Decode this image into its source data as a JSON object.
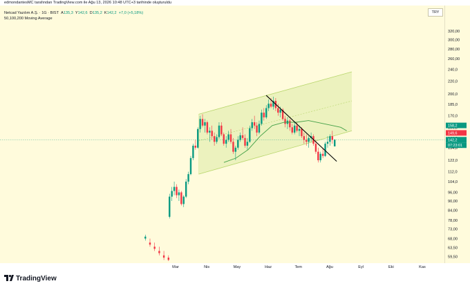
{
  "header": {
    "attribution": "edmondantesMC tarafından TradingView.com ile Ağu 13, 2026 10:48 UTC+3 tarihinde oluşturuldu"
  },
  "symbol": {
    "name": "Netcad Yazılım A.Ş. · 1G · BIST",
    "open_key": "A",
    "open_val": "135,3",
    "high_key": "Y",
    "high_val": "142,6",
    "low_key": "D",
    "low_val": "135,2",
    "close_key": "K",
    "close_val": "142,2",
    "change": "+7,0 (+5,18%)"
  },
  "indicator": {
    "label": "50,100,200 Moving Average"
  },
  "currency": "TRY",
  "logo": {
    "text": "TradingView"
  },
  "colors": {
    "up": "#089981",
    "down": "#f23645",
    "channel_fill": "#e6efb4",
    "channel_line": "#b6d56a",
    "ma": "#43a047",
    "trendline": "#000000"
  },
  "chart_data": {
    "type": "candlestick",
    "log_scale": true,
    "grid": false,
    "ylim": [
      57.5,
      335
    ],
    "y_ticks": [
      "320,00",
      "300,00",
      "280,00",
      "260,00",
      "240,0",
      "220,0",
      "200,0",
      "185,0",
      "170,0",
      "156,0",
      "144,0",
      "134,0",
      "122,0",
      "112,0",
      "104,0",
      "96,00",
      "90,00",
      "84,00",
      "78,00",
      "73,00",
      "68,00",
      "63,50",
      "59,50"
    ],
    "y_tick_values": [
      320,
      300,
      280,
      260,
      240,
      220,
      200,
      185,
      170,
      156,
      144,
      134,
      122,
      112,
      104,
      96,
      90,
      84,
      78,
      73,
      68,
      63.5,
      59.5
    ],
    "x_ticks": [
      "Mar",
      "Nis",
      "May",
      "Haz",
      "Tem",
      "Ağu",
      "Eyl",
      "Eki",
      "Kas"
    ],
    "x_tick_days": [
      0,
      31,
      61,
      92,
      122,
      153,
      184,
      214,
      245
    ],
    "price_tags": [
      {
        "label": "158,2",
        "value": 158.2,
        "color": "#089981"
      },
      {
        "label": "149,6",
        "value": 149.6,
        "color": "#f23645"
      },
      {
        "label": "142,2",
        "value": 142.2,
        "color": "#089981"
      },
      {
        "label": "07:23:01",
        "value": 136.5,
        "color": "#089981"
      }
    ],
    "trendline": {
      "points": [
        [
          1,
          198
        ],
        [
          1,
          121
        ]
      ],
      "days": [
        90,
        160
      ]
    },
    "channel": {
      "start_day": 23,
      "end_day": 175,
      "upper": [
        172,
        236
      ],
      "lower": [
        110,
        152
      ],
      "mid": [
        141,
        190
      ]
    },
    "moving_average": {
      "days": [
        48,
        60,
        72,
        84,
        96,
        108,
        120,
        132,
        144,
        156,
        164,
        170
      ],
      "values": [
        120,
        124,
        132,
        146,
        158,
        162,
        162,
        164,
        161,
        158,
        156,
        152
      ]
    },
    "candles_start_day": 0,
    "candles": [
      [
        68,
        70,
        67,
        69
      ],
      [
        66,
        68,
        64,
        65
      ],
      [
        64,
        66,
        62,
        63
      ],
      [
        62,
        64,
        60,
        61
      ],
      [
        60,
        62,
        58,
        59
      ],
      [
        59,
        60,
        57.5,
        58
      ],
      [
        80,
        95,
        79,
        93
      ],
      [
        93,
        100,
        90,
        97
      ],
      [
        97,
        104,
        94,
        100
      ],
      [
        100,
        102,
        92,
        94
      ],
      [
        94,
        98,
        90,
        96
      ],
      [
        96,
        97,
        87,
        88
      ],
      [
        88,
        94,
        86,
        93
      ],
      [
        93,
        106,
        92,
        104
      ],
      [
        104,
        112,
        102,
        110
      ],
      [
        110,
        126,
        109,
        124
      ],
      [
        124,
        138,
        122,
        136
      ],
      [
        136,
        142,
        132,
        134
      ],
      [
        134,
        156,
        133,
        154
      ],
      [
        154,
        170,
        150,
        166
      ],
      [
        166,
        172,
        156,
        158
      ],
      [
        158,
        166,
        150,
        162
      ],
      [
        162,
        164,
        148,
        150
      ],
      [
        150,
        156,
        140,
        152
      ],
      [
        152,
        158,
        142,
        146
      ],
      [
        146,
        150,
        136,
        140
      ],
      [
        140,
        148,
        138,
        145
      ],
      [
        145,
        162,
        143,
        158
      ],
      [
        158,
        162,
        146,
        148
      ],
      [
        148,
        150,
        136,
        138
      ],
      [
        138,
        146,
        134,
        142
      ],
      [
        142,
        152,
        140,
        148
      ],
      [
        148,
        154,
        138,
        140
      ],
      [
        140,
        144,
        128,
        130
      ],
      [
        130,
        136,
        122,
        134
      ],
      [
        134,
        146,
        132,
        142
      ],
      [
        142,
        150,
        140,
        147
      ],
      [
        147,
        156,
        142,
        144
      ],
      [
        144,
        148,
        134,
        136
      ],
      [
        136,
        144,
        132,
        140
      ],
      [
        140,
        158,
        139,
        155
      ],
      [
        155,
        166,
        152,
        162
      ],
      [
        162,
        170,
        154,
        158
      ],
      [
        158,
        162,
        146,
        150
      ],
      [
        150,
        164,
        148,
        160
      ],
      [
        160,
        178,
        158,
        174
      ],
      [
        174,
        180,
        164,
        168
      ],
      [
        168,
        184,
        166,
        180
      ],
      [
        180,
        192,
        176,
        186
      ],
      [
        186,
        194,
        180,
        182
      ],
      [
        182,
        196,
        178,
        190
      ],
      [
        190,
        194,
        176,
        180
      ],
      [
        180,
        186,
        170,
        174
      ],
      [
        174,
        182,
        168,
        178
      ],
      [
        178,
        180,
        164,
        166
      ],
      [
        166,
        170,
        156,
        160
      ],
      [
        160,
        168,
        154,
        164
      ],
      [
        164,
        166,
        152,
        156
      ],
      [
        156,
        160,
        148,
        150
      ],
      [
        150,
        162,
        148,
        158
      ],
      [
        158,
        162,
        150,
        152
      ],
      [
        152,
        158,
        146,
        154
      ],
      [
        154,
        156,
        144,
        146
      ],
      [
        146,
        150,
        138,
        142
      ],
      [
        142,
        148,
        136,
        140
      ],
      [
        140,
        146,
        134,
        144
      ],
      [
        144,
        150,
        140,
        146
      ],
      [
        146,
        148,
        136,
        138
      ],
      [
        138,
        142,
        128,
        130
      ],
      [
        130,
        134,
        120,
        122
      ],
      [
        122,
        130,
        120,
        128
      ],
      [
        128,
        134,
        124,
        126
      ],
      [
        126,
        140,
        125,
        138
      ],
      [
        138,
        146,
        134,
        140
      ],
      [
        140,
        148,
        136,
        146
      ],
      [
        146,
        152,
        138,
        142
      ],
      [
        135.3,
        142.6,
        135.2,
        142.2
      ]
    ]
  }
}
